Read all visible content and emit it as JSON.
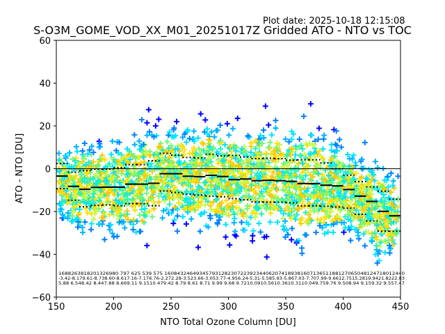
{
  "plot_date": "Plot date: 2025-10-18 12:15:08",
  "chart_data": {
    "type": "scatter",
    "title": "S-O3M_GOME_VOD_XX_M01_20251017Z Gridded ATO - NTO vs TOC",
    "xlabel": "NTO Total Ozone Column [DU]",
    "ylabel": "ATO - NTO [DU]",
    "xlim": [
      150,
      450
    ],
    "ylim": [
      -60,
      60
    ],
    "xticks": [
      "150",
      "200",
      "250",
      "300",
      "350",
      "400",
      "450"
    ],
    "yticks": [
      "−60",
      "−40",
      "−20",
      "0",
      "20",
      "40",
      "60"
    ],
    "xtick_values": [
      150,
      200,
      250,
      300,
      350,
      400,
      450
    ],
    "ytick_values": [
      -60,
      -40,
      -20,
      0,
      20,
      40,
      60
    ],
    "grid": false,
    "marker": "+",
    "colors": [
      "#0000ff",
      "#0080ff",
      "#00b4ff",
      "#00e5ff",
      "#20f0c0",
      "#70f870",
      "#c8f850",
      "#ffe000",
      "#ffc800"
    ],
    "zero_line": 0,
    "bin_width": 10,
    "bins_x": [
      150,
      160,
      170,
      180,
      190,
      200,
      210,
      220,
      230,
      240,
      250,
      260,
      270,
      280,
      290,
      300,
      310,
      320,
      330,
      340,
      350,
      360,
      370,
      380,
      390,
      400,
      410,
      420,
      430,
      440
    ],
    "median": [
      -3.4,
      -8.2,
      -9.6,
      -8.7,
      -8.6,
      -8.6,
      -7.2,
      -7.2,
      -6.8,
      -2.3,
      -2.3,
      -3.5,
      -3.7,
      -3.1,
      -3.6,
      -5.1,
      -4.8,
      -5.6,
      -5.4,
      -5.6,
      -5.9,
      -6.9,
      -7.0,
      -7.7,
      -8.0,
      -9.7,
      -12.8,
      -15.3,
      -19.9,
      -22.0
    ],
    "upper": [
      2.5,
      -1.6,
      -0.9,
      -0.2,
      -0.2,
      0.5,
      1.9,
      1.9,
      3.7,
      7.2,
      6.3,
      5.3,
      5.1,
      6.8,
      6.0,
      6.2,
      5.5,
      4.7,
      4.9,
      4.7,
      4.0,
      4.2,
      4.2,
      2.7,
      0.0,
      -3.0,
      -6.0,
      -8.5,
      -10.5,
      -14.2
    ],
    "lower": [
      -9.3,
      -14.7,
      -17.8,
      -17.1,
      -16.9,
      -17.3,
      -16.3,
      -16.3,
      -17.3,
      -10.4,
      -11.1,
      -11.9,
      -12.3,
      -12.8,
      -13.1,
      -14.0,
      -14.5,
      -15.5,
      -15.6,
      -15.6,
      -15.9,
      -17.3,
      -17.3,
      -17.5,
      -17.9,
      -18.4,
      -21.3,
      -24.4,
      -29.2,
      -29.2
    ],
    "annotations": {
      "counts": "1688263818201326980  797  625  539  575 1608432464934579312823072239234406207418938160713651188127065048124718012440",
      "means": "-3.42-8.179.61-8.738.60-8.617.16-7.176.76-2.272.28-3.523.66-3.053.77-4.956.24-5.31-5.585.93-5.867.03-7.707.99-9.6612.7515.2819.9421.8222.03",
      "stds": "5.88 6.548.42 8.447.88 8.669.11 9.1510.479.42 8.79 8.61 8.71 9.99 9.68 9.7210.0910.5610.3610.3110.049.759.76 9.508.94 9.159.32 9.557.47"
    }
  }
}
